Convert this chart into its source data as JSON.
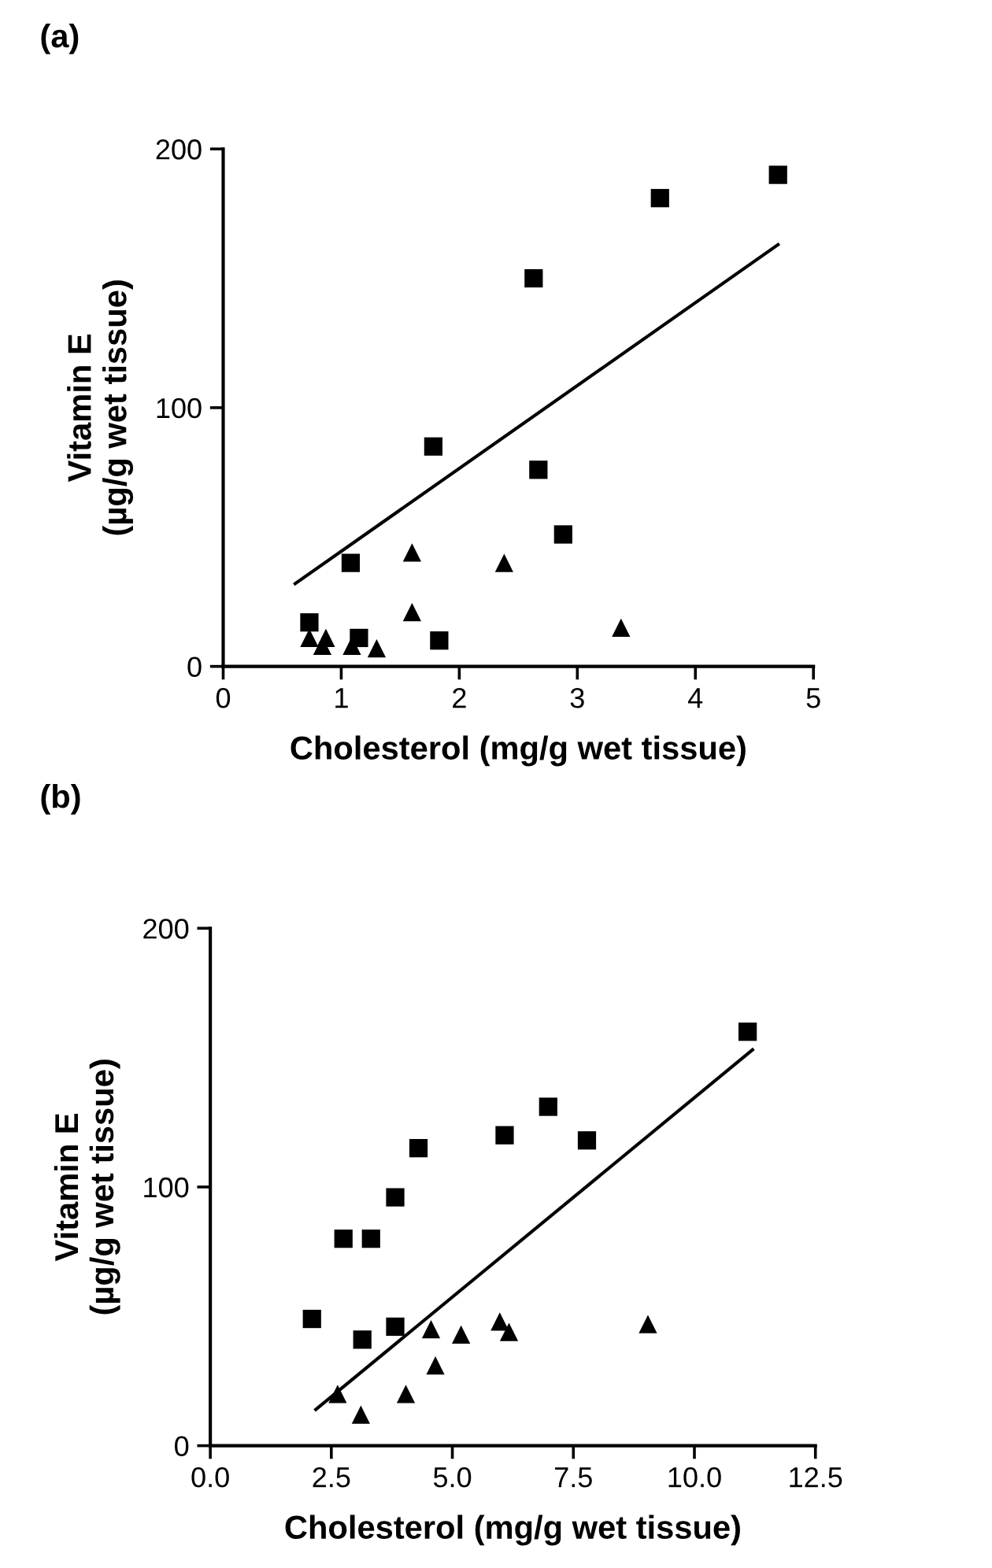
{
  "chart_data": [
    {
      "type": "scatter",
      "title": "(a)",
      "xlabel": "Cholesterol (mg/g wet tissue)",
      "ylabel": "Vitamin E\n(µg/g wet tissue)",
      "xlim": [
        0,
        5
      ],
      "ylim": [
        0,
        200
      ],
      "xticks": [
        0,
        1,
        2,
        3,
        4,
        5
      ],
      "yticks": [
        0,
        100,
        200
      ],
      "grid": false,
      "legend": false,
      "series": [
        {
          "color": "#000000",
          "marker": "square",
          "x": [
            0.73,
            1.08,
            1.15,
            1.78,
            1.83,
            2.63,
            2.67,
            2.88,
            3.7,
            4.7
          ],
          "values": [
            17,
            40,
            11,
            85,
            10,
            150,
            76,
            51,
            181,
            190
          ]
        },
        {
          "color": "#000000",
          "marker": "triangle",
          "x": [
            0.73,
            0.84,
            0.87,
            1.09,
            1.3,
            1.6,
            1.6,
            2.38,
            3.37
          ],
          "values": [
            11,
            8,
            11,
            8,
            7,
            44,
            21,
            40,
            15
          ]
        },
        {
          "type": "line",
          "color": "#000000",
          "marker": "none",
          "line_style": "solid",
          "x": [
            0.61,
            4.7
          ],
          "values": [
            32,
            163
          ]
        }
      ]
    },
    {
      "type": "scatter",
      "title": "(b)",
      "xlabel": "Cholesterol (mg/g wet tissue)",
      "ylabel": "Vitamin E\n(µg/g wet tissue)",
      "xlim": [
        0,
        12.5
      ],
      "ylim": [
        0,
        200
      ],
      "xticks": [
        {
          "value": 0,
          "label": "0.0"
        },
        {
          "value": 2.5,
          "label": "2.5"
        },
        {
          "value": 5,
          "label": "5.0"
        },
        {
          "value": 7.5,
          "label": "7.5"
        },
        {
          "value": 10,
          "label": "10.0"
        },
        {
          "value": 12.5,
          "label": "12.5"
        }
      ],
      "yticks": [
        0,
        100,
        200
      ],
      "grid": false,
      "legend": false,
      "series": [
        {
          "color": "#000000",
          "marker": "square",
          "x": [
            2.1,
            2.75,
            3.32,
            3.14,
            3.82,
            3.82,
            4.3,
            6.08,
            6.98,
            7.78,
            11.1
          ],
          "values": [
            49,
            80,
            80,
            41,
            96,
            46,
            115,
            120,
            131,
            118,
            160
          ]
        },
        {
          "color": "#000000",
          "marker": "triangle",
          "x": [
            2.63,
            3.11,
            4.04,
            4.56,
            4.65,
            5.18,
            5.98,
            6.17,
            9.04
          ],
          "values": [
            20,
            12,
            20,
            45,
            31,
            43,
            48,
            44,
            47
          ]
        },
        {
          "type": "line",
          "color": "#000000",
          "marker": "none",
          "line_style": "solid",
          "x": [
            2.18,
            11.2
          ],
          "values": [
            14,
            153
          ]
        }
      ]
    }
  ]
}
